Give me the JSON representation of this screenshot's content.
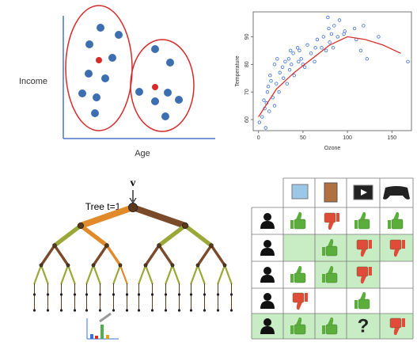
{
  "clusters": {
    "y_label": "Income",
    "x_label": "Age"
  },
  "chart_data": {
    "type": "scatter",
    "x_label": "Ozone",
    "y_label": "Temperature",
    "xlim": [
      -6,
      172
    ],
    "ylim": [
      56,
      99
    ],
    "xticks": [
      0,
      50,
      100,
      150
    ],
    "yticks": [
      60,
      70,
      80,
      90
    ],
    "series": [
      {
        "type": "scatter",
        "color": "#3a6fd8",
        "x": [
          1,
          4,
          6,
          7,
          8,
          9,
          10,
          11,
          12,
          13,
          14,
          16,
          18,
          18,
          20,
          21,
          23,
          24,
          27,
          28,
          30,
          32,
          34,
          35,
          36,
          37,
          39,
          40,
          44,
          45,
          46,
          48,
          50,
          52,
          55,
          59,
          63,
          64,
          66,
          71,
          73,
          76,
          78,
          79,
          80,
          82,
          84,
          85,
          89,
          91,
          96,
          97,
          108,
          110,
          115,
          118,
          122,
          135,
          168
        ],
        "values": [
          59,
          61,
          67,
          64,
          57,
          66,
          70,
          72,
          63,
          76,
          74,
          68,
          80,
          65,
          73,
          82,
          70,
          77,
          79,
          75,
          81,
          73,
          82,
          78,
          85,
          80,
          84,
          76,
          86,
          81,
          85,
          82,
          80,
          79,
          87,
          84,
          81,
          86,
          89,
          86,
          90,
          85,
          97,
          93,
          88,
          91,
          86,
          94,
          90,
          96,
          91,
          92,
          93,
          89,
          85,
          94,
          82,
          90,
          81
        ]
      },
      {
        "type": "line",
        "color": "#d9302c",
        "x": [
          0,
          20,
          40,
          60,
          80,
          100,
          120,
          140,
          160
        ],
        "values": [
          61,
          71,
          77,
          82,
          87,
          90,
          89,
          87,
          84
        ]
      }
    ]
  },
  "tree": {
    "input": "v",
    "label": "Tree t=1"
  },
  "matrix": {
    "unknown": "?"
  }
}
